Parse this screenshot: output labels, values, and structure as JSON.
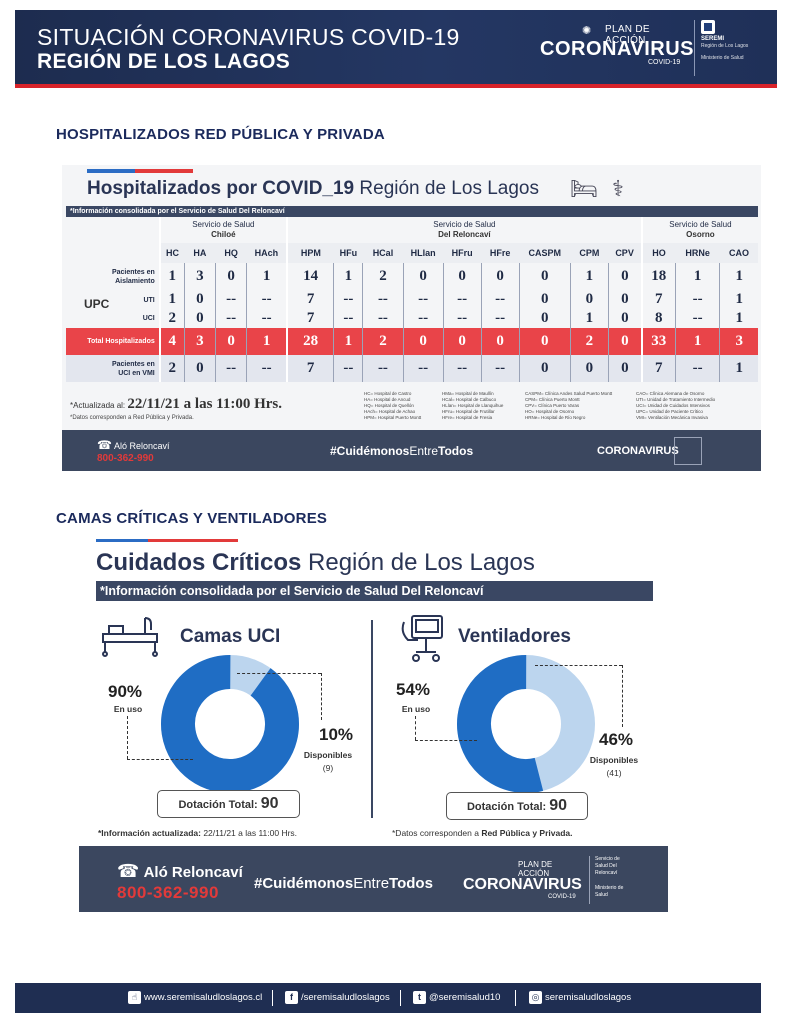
{
  "header": {
    "title_line1": "SITUACIÓN CORONAVIRUS COVID-19",
    "title_line2": "REGIÓN DE LOS LAGOS",
    "logo_small": "PLAN DE ACCIÓN",
    "logo_big": "CORONAVIRUS",
    "logo_sub": "COVID-19",
    "seremi_top": "SEREMI",
    "seremi_region": "Región de Los Lagos",
    "seremi_ministry": "Ministerio de Salud"
  },
  "section1": {
    "heading": "HOSPITALIZADOS RED PÚBLICA Y PRIVADA",
    "title_bold": "Hospitalizados por COVID_19",
    "title_rest": " Región de Los Lagos",
    "info": "*Información consolidada por el Servicio de Salud Del Reloncaví",
    "groups": [
      {
        "label": "Servicio de Salud",
        "name": "Chiloé"
      },
      {
        "label": "Servicio de Salud",
        "name": "Del Reloncaví"
      },
      {
        "label": "Servicio de Salud",
        "name": "Osorno"
      }
    ],
    "columns": [
      "HC",
      "HA",
      "HQ",
      "HAch",
      "HPM",
      "HFu",
      "HCal",
      "HLlan",
      "HFru",
      "HFre",
      "CASPM",
      "CPM",
      "CPV",
      "HO",
      "HRNe",
      "CAO"
    ],
    "rows": {
      "aislamiento": {
        "label1": "Pacientes en",
        "label2": "Aislamiento",
        "values": [
          "1",
          "3",
          "0",
          "1",
          "14",
          "1",
          "2",
          "0",
          "0",
          "0",
          "0",
          "1",
          "0",
          "18",
          "1",
          "1"
        ]
      },
      "upc_label": "UPC",
      "uti": {
        "label": "UTI",
        "values": [
          "1",
          "0",
          "--",
          "--",
          "7",
          "--",
          "--",
          "--",
          "--",
          "--",
          "0",
          "0",
          "0",
          "7",
          "--",
          "1"
        ]
      },
      "uci": {
        "label": "UCI",
        "values": [
          "2",
          "0",
          "--",
          "--",
          "7",
          "--",
          "--",
          "--",
          "--",
          "--",
          "0",
          "1",
          "0",
          "8",
          "--",
          "1"
        ]
      },
      "total": {
        "label": "Total Hospitalizados",
        "values": [
          "4",
          "3",
          "0",
          "1",
          "28",
          "1",
          "2",
          "0",
          "0",
          "0",
          "0",
          "2",
          "0",
          "33",
          "1",
          "3"
        ]
      },
      "vmi": {
        "label1": "Pacientes en",
        "label2": "UCI en VMI",
        "values": [
          "2",
          "0",
          "--",
          "--",
          "7",
          "--",
          "--",
          "--",
          "--",
          "--",
          "0",
          "0",
          "0",
          "7",
          "--",
          "1"
        ]
      }
    },
    "updated_prefix": "*Actualizada al:",
    "updated_value": "22/11/21 a las 11:00 Hrs.",
    "data_note": "*Datos corresponden a Red Pública y Privada.",
    "legend": [
      [
        "HC= Hospital de Castro",
        "HA= Hospital de Ancud",
        "HQ= Hospital de Quellón",
        "HAch= Hospital de Achao",
        "HPM= Hospital Puerto Montt"
      ],
      [
        "HMa= Hospital de Maullín",
        "HCal= Hospital de Calbuco",
        "HLlan= Hospital de Llanquihue",
        "HFru= Hospital de Frutillar",
        "HFre= Hospital de Fresia"
      ],
      [
        "CASPM= Clínica Andes Salud Puerto Montt",
        "CPM= Clínica Puerto Montt",
        "CPV= Clínica Puerto Varas",
        "HO= Hospital de Osorno",
        "HRNe= Hospital de Río Negro"
      ],
      [
        "CAO= Clínica Alemana de Osorno",
        "UTI= Unidad de Tratamiento Intermedio",
        "UCI= Unidad de Cuidados Intensivos",
        "UPC= Unidad de Paciente Crítico",
        "VMI= Ventilación Mecánica Invasiva"
      ]
    ],
    "footer": {
      "alo": "Aló Reloncaví",
      "phone": "800-362-990",
      "hashtag_bold": "#Cuidémonos",
      "hashtag_rest": "Entre",
      "hashtag_end": "Todos",
      "logo": "CORONAVIRUS"
    }
  },
  "section2": {
    "heading": "CAMAS CRÍTICAS Y VENTILADORES",
    "title_bold": "Cuidados Críticos",
    "title_rest": " Región de Los Lagos",
    "info": "*Información consolidada por el Servicio de Salud Del Reloncaví",
    "camas": {
      "title": "Camas UCI",
      "in_use_pct": "90%",
      "in_use_label": "En uso",
      "available_pct": "10%",
      "available_label": "Disponibles",
      "available_count": "(9)",
      "in_use_fraction": 0.9,
      "dotation_label": "Dotación Total:",
      "dotation_value": "90"
    },
    "ventiladores": {
      "title": "Ventiladores",
      "in_use_pct": "54%",
      "in_use_label": "En uso",
      "available_pct": "46%",
      "available_label": "Disponibles",
      "available_count": "(41)",
      "in_use_fraction": 0.54,
      "dotation_label": "Dotación Total:",
      "dotation_value": "90"
    },
    "note_left_prefix": "*Información actualizada:",
    "note_left_value": " 22/11/21 a las 11:00 Hrs.",
    "note_right_prefix": "*Datos corresponden a ",
    "note_right_bold": "Red Pública y Privada.",
    "footer": {
      "alo": "Aló Reloncaví",
      "phone": "800-362-990",
      "hashtag_bold": "#Cuidémonos",
      "hashtag_rest": "Entre",
      "hashtag_end": "Todos",
      "logo_small": "PLAN DE ACCIÓN",
      "logo_big": "CORONAVIRUS",
      "logo_sub": "COVID-19",
      "seremi_lines": [
        "Servicio de",
        "Salud Del",
        "Reloncaví",
        "Ministerio de Salud"
      ]
    }
  },
  "colors": {
    "navy": "#1d2c4f",
    "red": "#d8232a",
    "donut_dark": "#1f6dc4",
    "donut_light": "#bcd5ee"
  },
  "social": {
    "web": "www.seremisaludloslagos.cl",
    "facebook": "/seremisaludloslagos",
    "twitter": "@seremisalud10",
    "instagram": "seremisaludloslagos"
  }
}
